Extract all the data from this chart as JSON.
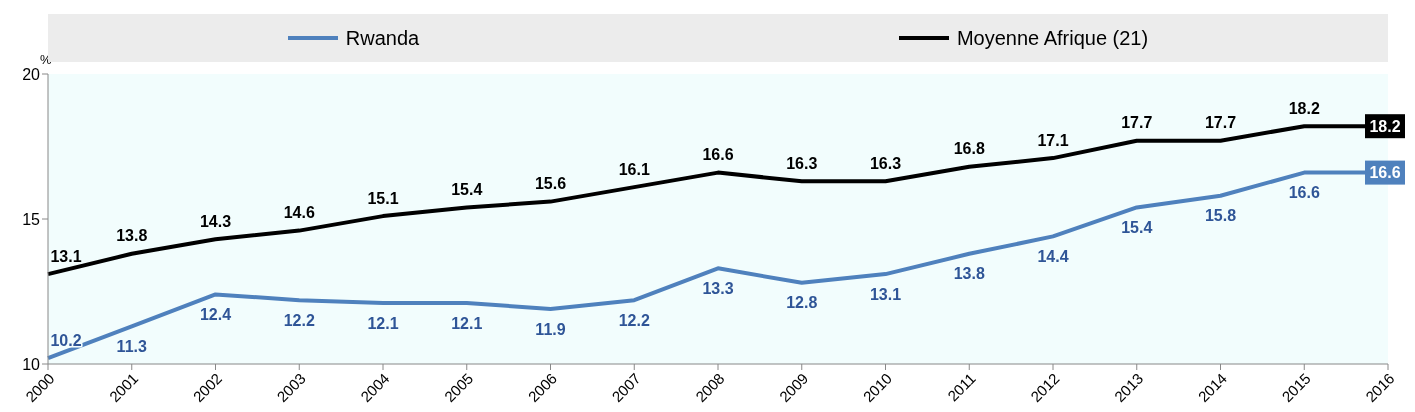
{
  "chart_data": {
    "type": "line",
    "ylabel": "%",
    "categories": [
      "2000",
      "2001",
      "2002",
      "2003",
      "2004",
      "2005",
      "2006",
      "2007",
      "2008",
      "2009",
      "2010",
      "2011",
      "2012",
      "2013",
      "2014",
      "2015",
      "2016"
    ],
    "series": [
      {
        "name": "Rwanda",
        "color": "#4f81bd",
        "values": [
          10.2,
          11.3,
          12.4,
          12.2,
          12.1,
          12.1,
          11.9,
          12.2,
          13.3,
          12.8,
          13.1,
          13.8,
          14.4,
          15.4,
          15.8,
          16.6,
          16.6
        ]
      },
      {
        "name": "Moyenne Afrique (21)",
        "color": "#000000",
        "values": [
          13.1,
          13.8,
          14.3,
          14.6,
          15.1,
          15.4,
          15.6,
          16.1,
          16.6,
          16.3,
          16.3,
          16.8,
          17.1,
          17.7,
          17.7,
          18.2,
          18.2
        ]
      }
    ],
    "ylim": [
      10,
      20
    ],
    "yticks": [
      10,
      15,
      20
    ],
    "grid": false,
    "legend": "top",
    "marker": "none",
    "line_style": "solid",
    "data_labels": true
  }
}
